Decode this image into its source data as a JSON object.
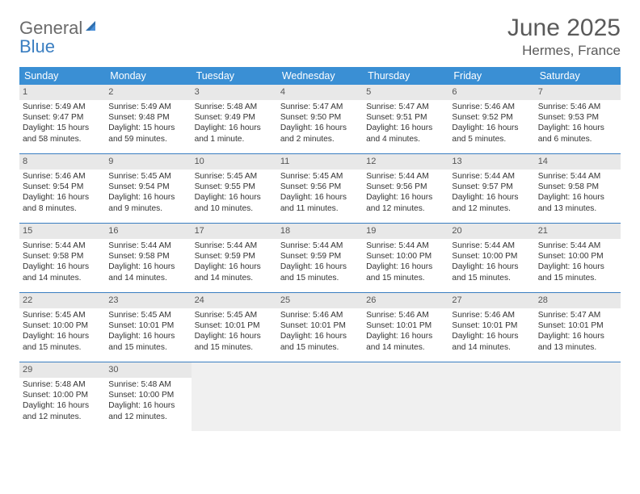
{
  "logo": {
    "text1": "General",
    "text2": "Blue"
  },
  "title": "June 2025",
  "location": "Hermes, France",
  "colors": {
    "header_bg": "#3a8fd4",
    "header_fg": "#ffffff",
    "rule": "#3a7ec1",
    "daynum_bg": "#e8e8e8",
    "daynum_fg": "#555555",
    "empty_bg": "#f0f0f0",
    "body_text": "#333333",
    "title_text": "#5a5a5a",
    "logo_gray": "#6b6b6b",
    "logo_blue": "#3a7ec1"
  },
  "weekdays": [
    "Sunday",
    "Monday",
    "Tuesday",
    "Wednesday",
    "Thursday",
    "Friday",
    "Saturday"
  ],
  "weeks": [
    [
      {
        "n": "1",
        "sr": "5:49 AM",
        "ss": "9:47 PM",
        "dl": "15 hours and 58 minutes."
      },
      {
        "n": "2",
        "sr": "5:49 AM",
        "ss": "9:48 PM",
        "dl": "15 hours and 59 minutes."
      },
      {
        "n": "3",
        "sr": "5:48 AM",
        "ss": "9:49 PM",
        "dl": "16 hours and 1 minute."
      },
      {
        "n": "4",
        "sr": "5:47 AM",
        "ss": "9:50 PM",
        "dl": "16 hours and 2 minutes."
      },
      {
        "n": "5",
        "sr": "5:47 AM",
        "ss": "9:51 PM",
        "dl": "16 hours and 4 minutes."
      },
      {
        "n": "6",
        "sr": "5:46 AM",
        "ss": "9:52 PM",
        "dl": "16 hours and 5 minutes."
      },
      {
        "n": "7",
        "sr": "5:46 AM",
        "ss": "9:53 PM",
        "dl": "16 hours and 6 minutes."
      }
    ],
    [
      {
        "n": "8",
        "sr": "5:46 AM",
        "ss": "9:54 PM",
        "dl": "16 hours and 8 minutes."
      },
      {
        "n": "9",
        "sr": "5:45 AM",
        "ss": "9:54 PM",
        "dl": "16 hours and 9 minutes."
      },
      {
        "n": "10",
        "sr": "5:45 AM",
        "ss": "9:55 PM",
        "dl": "16 hours and 10 minutes."
      },
      {
        "n": "11",
        "sr": "5:45 AM",
        "ss": "9:56 PM",
        "dl": "16 hours and 11 minutes."
      },
      {
        "n": "12",
        "sr": "5:44 AM",
        "ss": "9:56 PM",
        "dl": "16 hours and 12 minutes."
      },
      {
        "n": "13",
        "sr": "5:44 AM",
        "ss": "9:57 PM",
        "dl": "16 hours and 12 minutes."
      },
      {
        "n": "14",
        "sr": "5:44 AM",
        "ss": "9:58 PM",
        "dl": "16 hours and 13 minutes."
      }
    ],
    [
      {
        "n": "15",
        "sr": "5:44 AM",
        "ss": "9:58 PM",
        "dl": "16 hours and 14 minutes."
      },
      {
        "n": "16",
        "sr": "5:44 AM",
        "ss": "9:58 PM",
        "dl": "16 hours and 14 minutes."
      },
      {
        "n": "17",
        "sr": "5:44 AM",
        "ss": "9:59 PM",
        "dl": "16 hours and 14 minutes."
      },
      {
        "n": "18",
        "sr": "5:44 AM",
        "ss": "9:59 PM",
        "dl": "16 hours and 15 minutes."
      },
      {
        "n": "19",
        "sr": "5:44 AM",
        "ss": "10:00 PM",
        "dl": "16 hours and 15 minutes."
      },
      {
        "n": "20",
        "sr": "5:44 AM",
        "ss": "10:00 PM",
        "dl": "16 hours and 15 minutes."
      },
      {
        "n": "21",
        "sr": "5:44 AM",
        "ss": "10:00 PM",
        "dl": "16 hours and 15 minutes."
      }
    ],
    [
      {
        "n": "22",
        "sr": "5:45 AM",
        "ss": "10:00 PM",
        "dl": "16 hours and 15 minutes."
      },
      {
        "n": "23",
        "sr": "5:45 AM",
        "ss": "10:01 PM",
        "dl": "16 hours and 15 minutes."
      },
      {
        "n": "24",
        "sr": "5:45 AM",
        "ss": "10:01 PM",
        "dl": "16 hours and 15 minutes."
      },
      {
        "n": "25",
        "sr": "5:46 AM",
        "ss": "10:01 PM",
        "dl": "16 hours and 15 minutes."
      },
      {
        "n": "26",
        "sr": "5:46 AM",
        "ss": "10:01 PM",
        "dl": "16 hours and 14 minutes."
      },
      {
        "n": "27",
        "sr": "5:46 AM",
        "ss": "10:01 PM",
        "dl": "16 hours and 14 minutes."
      },
      {
        "n": "28",
        "sr": "5:47 AM",
        "ss": "10:01 PM",
        "dl": "16 hours and 13 minutes."
      }
    ],
    [
      {
        "n": "29",
        "sr": "5:48 AM",
        "ss": "10:00 PM",
        "dl": "16 hours and 12 minutes."
      },
      {
        "n": "30",
        "sr": "5:48 AM",
        "ss": "10:00 PM",
        "dl": "16 hours and 12 minutes."
      },
      null,
      null,
      null,
      null,
      null
    ]
  ],
  "labels": {
    "sunrise": "Sunrise: ",
    "sunset": "Sunset: ",
    "daylight": "Daylight: "
  }
}
